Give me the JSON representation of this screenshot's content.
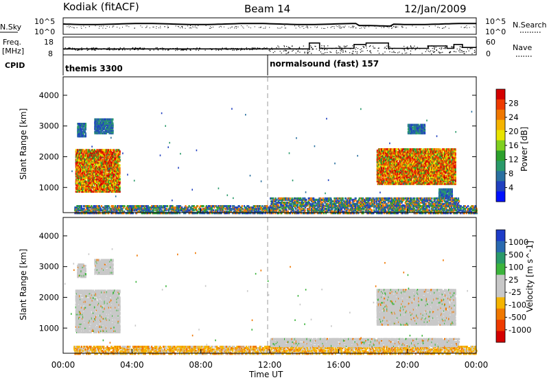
{
  "header": {
    "station": "Kodiak (fitACF)",
    "beam": "Beam 14",
    "date": "12/Jan/2009"
  },
  "side_labels": {
    "nsky": "N.Sky",
    "nsearch": "N.Search",
    "freq": "Freq.",
    "freq_unit": "[MHz]",
    "nave": "Nave",
    "cpid": "CPID"
  },
  "cpid_segments": [
    {
      "label": "themis 3300",
      "start_hour": 0
    },
    {
      "label": "normalsound (fast) 157",
      "start_hour": 12
    }
  ],
  "chart_data": [
    {
      "type": "line",
      "name": "noise",
      "left_ticks": [
        "10^5",
        "10^0"
      ],
      "right_ticks": [
        "10^5",
        "10^0"
      ],
      "left_label": "N.Sky",
      "right_label": "N.Search"
    },
    {
      "type": "line",
      "name": "frequency",
      "left_ticks": [
        "18",
        "8"
      ],
      "right_ticks": [
        "60",
        "0"
      ],
      "left_label": "Freq. [MHz]",
      "right_label": "Nave",
      "ylim_left": [
        8,
        18
      ],
      "ylim_right": [
        0,
        60
      ],
      "nave_steps": [
        {
          "x": [
            0,
            14.3
          ],
          "v": 20
        },
        {
          "x": [
            14.3,
            14.9
          ],
          "v": 40
        },
        {
          "x": [
            14.9,
            16.9
          ],
          "v": 22
        },
        {
          "x": [
            16.9,
            17.6
          ],
          "v": 35
        },
        {
          "x": [
            17.6,
            18.9
          ],
          "v": 40
        },
        {
          "x": [
            18.9,
            21.2
          ],
          "v": 22
        },
        {
          "x": [
            21.2,
            22.3
          ],
          "v": 30
        },
        {
          "x": [
            22.3,
            22.7
          ],
          "v": 22
        },
        {
          "x": [
            22.7,
            23.2
          ],
          "v": 35
        },
        {
          "x": [
            23.2,
            24
          ],
          "v": 25
        }
      ]
    },
    {
      "type": "heatmap",
      "name": "power",
      "ylabel": "Slant Range [km]",
      "yticks": [
        1000,
        2000,
        3000,
        4000
      ],
      "ylim": [
        180,
        4600
      ],
      "xlim": [
        0,
        24
      ],
      "colorbar": {
        "label": "Power [dB]",
        "ticks": [
          "28",
          "24",
          "20",
          "16",
          "12",
          "8",
          "4"
        ],
        "colors": [
          "#d40000",
          "#ee3a00",
          "#f07800",
          "#f5b400",
          "#e8e400",
          "#80d020",
          "#2ca02c",
          "#2a9a6a",
          "#2a70a0",
          "#2040c0",
          "#0010ff"
        ]
      },
      "regions": [
        {
          "x": [
            0.7,
            3.3
          ],
          "r": [
            900,
            2300
          ],
          "level": "high"
        },
        {
          "x": [
            0.8,
            1.3
          ],
          "r": [
            2700,
            3150
          ],
          "level": "low"
        },
        {
          "x": [
            1.8,
            2.9
          ],
          "r": [
            2800,
            3300
          ],
          "level": "low"
        },
        {
          "x": [
            18.2,
            22.8
          ],
          "r": [
            1150,
            2300
          ],
          "level": "high"
        },
        {
          "x": [
            21.8,
            22.6
          ],
          "r": [
            700,
            1000
          ],
          "level": "low"
        },
        {
          "x": [
            20,
            21
          ],
          "r": [
            2800,
            3100
          ],
          "level": "low"
        },
        {
          "x": [
            0.6,
            24
          ],
          "r": [
            200,
            450
          ],
          "level": "mid"
        },
        {
          "x": [
            12,
            23
          ],
          "r": [
            450,
            700
          ],
          "level": "mid"
        }
      ]
    },
    {
      "type": "heatmap",
      "name": "velocity",
      "ylabel": "Slant Range [km]",
      "yticks": [
        1000,
        2000,
        3000,
        4000
      ],
      "ylim": [
        180,
        4600
      ],
      "xlim": [
        0,
        24
      ],
      "xticks": [
        "00:00",
        "04:00",
        "08:00",
        "12:00",
        "16:00",
        "20:00",
        "00:00"
      ],
      "xlabel": "Time UT",
      "colorbar": {
        "label": "Velocity [m s^-1]",
        "ticks": [
          "1000",
          "500",
          "100",
          "25",
          "-25",
          "-100",
          "-500",
          "-1000"
        ],
        "colors": [
          "#1e3cc8",
          "#2a6ab0",
          "#2a9a6a",
          "#3cb43c",
          "#c8c8c8",
          "#c8c8c8",
          "#f5b400",
          "#f07800",
          "#ee3a00",
          "#d40000"
        ]
      },
      "regions": [
        {
          "x": [
            0.7,
            3.3
          ],
          "r": [
            900,
            2300
          ],
          "level": "grey"
        },
        {
          "x": [
            0.8,
            1.3
          ],
          "r": [
            2700,
            3150
          ],
          "level": "grey"
        },
        {
          "x": [
            1.8,
            2.9
          ],
          "r": [
            2800,
            3300
          ],
          "level": "grey"
        },
        {
          "x": [
            18.2,
            22.8
          ],
          "r": [
            1150,
            2300
          ],
          "level": "grey"
        },
        {
          "x": [
            0.6,
            24
          ],
          "r": [
            200,
            450
          ],
          "level": "yellow"
        },
        {
          "x": [
            12,
            23
          ],
          "r": [
            450,
            700
          ],
          "level": "grey"
        }
      ]
    }
  ]
}
